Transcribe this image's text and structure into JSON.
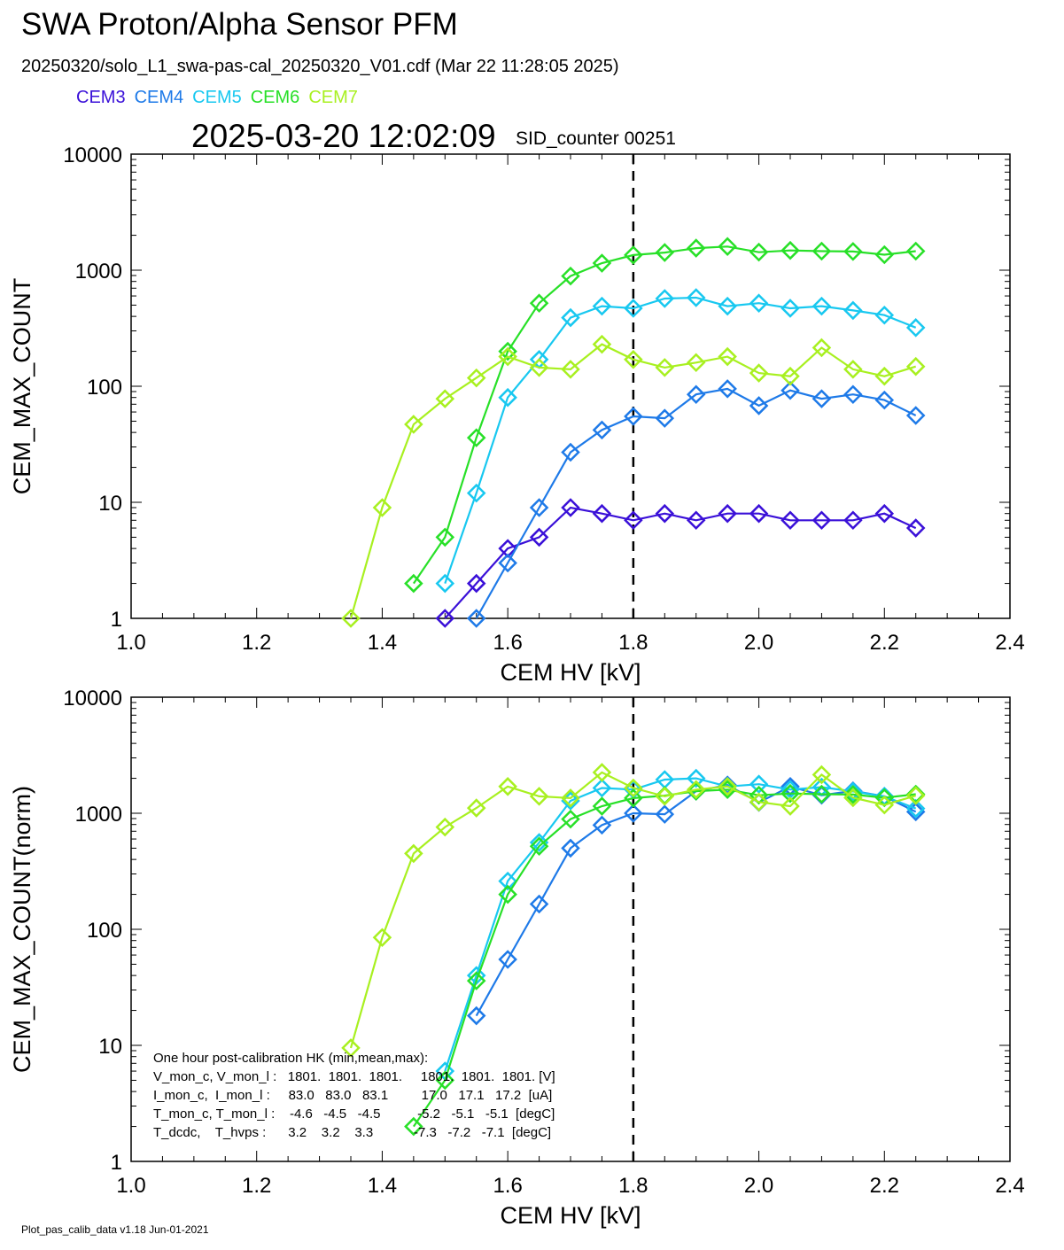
{
  "title": "SWA Proton/Alpha Sensor PFM",
  "subtitle": "20250320/solo_L1_swa-pas-cal_20250320_V01.cdf  (Mar 22 11:28:05 2025)",
  "timestamp": "2025-03-20 12:02:09",
  "sid_counter": "SID_counter 00251",
  "footer": "Plot_pas_calib_data v1.18 Jun-01-2021",
  "legend": [
    {
      "label": "CEM3",
      "color": "#3a10d8"
    },
    {
      "label": "CEM4",
      "color": "#1e7ae8"
    },
    {
      "label": "CEM5",
      "color": "#18c8f0"
    },
    {
      "label": "CEM6",
      "color": "#28e028"
    },
    {
      "label": "CEM7",
      "color": "#a8f020"
    }
  ],
  "hk_note": {
    "title": "One hour post-calibration HK (min,mean,max):",
    "rows": [
      "V_mon_c, V_mon_l :   1801.  1801.  1801.     1801.  1801.  1801. [V]",
      "I_mon_c,  I_mon_l :     83.0   83.0   83.1         17.0   17.1   17.2  [uA]",
      "T_mon_c, T_mon_l :    -4.6   -4.5   -4.5          -5.2   -5.1   -5.1  [degC]",
      "T_dcdc,    T_hvps :      3.2    3.2    3.3           -7.3   -7.2   -7.1  [degC]"
    ]
  },
  "chart_data": [
    {
      "type": "line",
      "xlabel": "CEM HV [kV]",
      "ylabel": "CEM_MAX_COUNT",
      "xlim": [
        1.0,
        2.4
      ],
      "ylim": [
        1,
        10000
      ],
      "yscale": "log",
      "xticks": [
        "1.0",
        "1.2",
        "1.4",
        "1.6",
        "1.8",
        "2.0",
        "2.2",
        "2.4"
      ],
      "yticks": [
        "1",
        "10",
        "100",
        "1000",
        "10000"
      ],
      "vline": 1.8,
      "series": [
        {
          "name": "CEM3",
          "color": "#3a10d8",
          "x": [
            1.5,
            1.55,
            1.6,
            1.65,
            1.7,
            1.75,
            1.8,
            1.85,
            1.9,
            1.95,
            2.0,
            2.05,
            2.1,
            2.15,
            2.2,
            2.25
          ],
          "y": [
            1,
            2,
            4,
            5,
            9,
            8,
            7,
            8,
            7,
            8,
            8,
            7,
            7,
            7,
            8,
            6
          ]
        },
        {
          "name": "CEM4",
          "color": "#1e7ae8",
          "x": [
            1.55,
            1.6,
            1.65,
            1.7,
            1.75,
            1.8,
            1.85,
            1.9,
            1.95,
            2.0,
            2.05,
            2.1,
            2.15,
            2.2,
            2.25
          ],
          "y": [
            1,
            3,
            9,
            27,
            42,
            55,
            53,
            85,
            95,
            68,
            92,
            78,
            85,
            76,
            56
          ]
        },
        {
          "name": "CEM5",
          "color": "#18c8f0",
          "x": [
            1.5,
            1.55,
            1.6,
            1.65,
            1.7,
            1.75,
            1.8,
            1.85,
            1.9,
            1.95,
            2.0,
            2.05,
            2.1,
            2.15,
            2.2,
            2.25
          ],
          "y": [
            2,
            12,
            80,
            170,
            390,
            490,
            470,
            570,
            580,
            490,
            520,
            470,
            490,
            450,
            410,
            320
          ]
        },
        {
          "name": "CEM6",
          "color": "#28e028",
          "x": [
            1.45,
            1.5,
            1.55,
            1.6,
            1.65,
            1.7,
            1.75,
            1.8,
            1.85,
            1.9,
            1.95,
            2.0,
            2.05,
            2.1,
            2.15,
            2.2,
            2.25
          ],
          "y": [
            2,
            5,
            36,
            200,
            520,
            890,
            1150,
            1350,
            1420,
            1550,
            1600,
            1430,
            1480,
            1460,
            1450,
            1360,
            1460
          ]
        },
        {
          "name": "CEM7",
          "color": "#a8f020",
          "x": [
            1.35,
            1.4,
            1.45,
            1.5,
            1.55,
            1.6,
            1.65,
            1.7,
            1.75,
            1.8,
            1.85,
            1.9,
            1.95,
            2.0,
            2.05,
            2.1,
            2.15,
            2.2,
            2.25
          ],
          "y": [
            1,
            9,
            47,
            78,
            118,
            180,
            145,
            140,
            230,
            170,
            145,
            160,
            180,
            130,
            122,
            215,
            140,
            122,
            148
          ]
        }
      ]
    },
    {
      "type": "line",
      "xlabel": "CEM HV [kV]",
      "ylabel": "CEM_MAX_COUNT(norm)",
      "xlim": [
        1.0,
        2.4
      ],
      "ylim": [
        1,
        10000
      ],
      "yscale": "log",
      "xticks": [
        "1.0",
        "1.2",
        "1.4",
        "1.6",
        "1.8",
        "2.0",
        "2.2",
        "2.4"
      ],
      "yticks": [
        "1",
        "10",
        "100",
        "1000",
        "10000"
      ],
      "vline": 1.8,
      "series": [
        {
          "name": "CEM4",
          "color": "#1e7ae8",
          "x": [
            1.55,
            1.6,
            1.65,
            1.7,
            1.75,
            1.8,
            1.85,
            1.9,
            1.95,
            2.0,
            2.05,
            2.1,
            2.15,
            2.2,
            2.25
          ],
          "y": [
            18,
            55,
            165,
            500,
            790,
            1000,
            980,
            1550,
            1750,
            1240,
            1700,
            1430,
            1560,
            1400,
            1030
          ]
        },
        {
          "name": "CEM5",
          "color": "#18c8f0",
          "x": [
            1.5,
            1.55,
            1.6,
            1.65,
            1.7,
            1.75,
            1.8,
            1.85,
            1.9,
            1.95,
            2.0,
            2.05,
            2.1,
            2.15,
            2.2,
            2.25
          ],
          "y": [
            6,
            40,
            260,
            560,
            1280,
            1650,
            1600,
            1950,
            2000,
            1700,
            1780,
            1600,
            1680,
            1540,
            1400,
            1100
          ]
        },
        {
          "name": "CEM6",
          "color": "#28e028",
          "x": [
            1.45,
            1.5,
            1.55,
            1.6,
            1.65,
            1.7,
            1.75,
            1.8,
            1.85,
            1.9,
            1.95,
            2.0,
            2.05,
            2.1,
            2.15,
            2.2,
            2.25
          ],
          "y": [
            2,
            5,
            36,
            200,
            520,
            890,
            1150,
            1350,
            1420,
            1550,
            1600,
            1430,
            1480,
            1460,
            1450,
            1360,
            1460
          ]
        },
        {
          "name": "CEM7",
          "color": "#a8f020",
          "x": [
            1.35,
            1.4,
            1.45,
            1.5,
            1.55,
            1.6,
            1.65,
            1.7,
            1.75,
            1.8,
            1.85,
            1.9,
            1.95,
            2.0,
            2.05,
            2.1,
            2.15,
            2.2,
            2.25
          ],
          "y": [
            9.5,
            85,
            450,
            760,
            1110,
            1700,
            1400,
            1350,
            2250,
            1650,
            1400,
            1600,
            1700,
            1250,
            1150,
            2150,
            1360,
            1180,
            1420
          ]
        }
      ]
    }
  ]
}
